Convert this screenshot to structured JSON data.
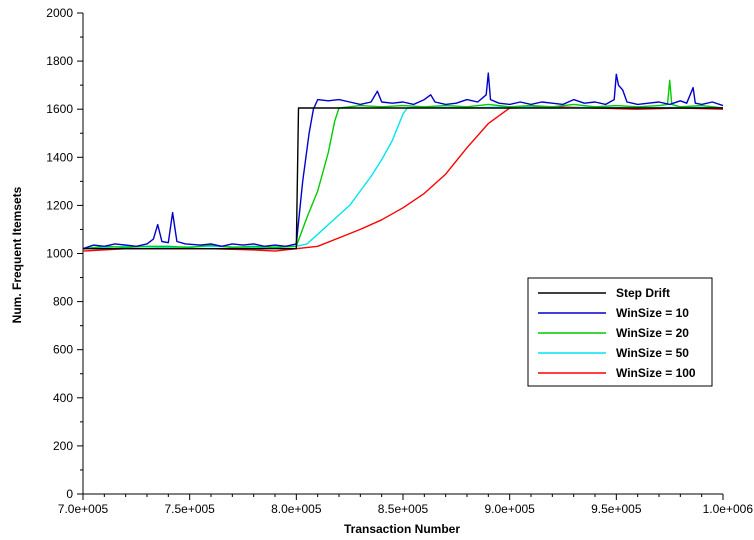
{
  "chart_data": {
    "type": "line",
    "title": "",
    "xlabel": "Transaction Number",
    "ylabel": "Num. Frequent Itemsets",
    "xlim": [
      700000,
      1000000
    ],
    "ylim": [
      0,
      2000
    ],
    "x_ticks": [
      700000,
      750000,
      800000,
      850000,
      900000,
      950000,
      1000000
    ],
    "x_tick_labels": [
      "7.0e+005",
      "7.5e+005",
      "8.0e+005",
      "8.5e+005",
      "9.0e+005",
      "9.5e+005",
      "1.0e+006"
    ],
    "y_ticks": [
      0,
      200,
      400,
      600,
      800,
      1000,
      1200,
      1400,
      1600,
      1800,
      2000
    ],
    "y_tick_labels": [
      "0",
      "200",
      "400",
      "600",
      "800",
      "1000",
      "1200",
      "1400",
      "1600",
      "1800",
      "2000"
    ],
    "grid": false,
    "legend_position": "lower-right",
    "series": [
      {
        "name": "Step Drift",
        "color": "#000000",
        "points": [
          [
            700000,
            1020
          ],
          [
            800000,
            1020
          ],
          [
            801000,
            1605
          ],
          [
            1000000,
            1605
          ]
        ]
      },
      {
        "name": "WinSize = 10",
        "color": "#0000cc",
        "points": [
          [
            700000,
            1020
          ],
          [
            705000,
            1035
          ],
          [
            710000,
            1030
          ],
          [
            715000,
            1040
          ],
          [
            720000,
            1035
          ],
          [
            725000,
            1030
          ],
          [
            730000,
            1040
          ],
          [
            733000,
            1060
          ],
          [
            735000,
            1120
          ],
          [
            737000,
            1050
          ],
          [
            740000,
            1045
          ],
          [
            742000,
            1170
          ],
          [
            744000,
            1050
          ],
          [
            748000,
            1040
          ],
          [
            755000,
            1035
          ],
          [
            760000,
            1040
          ],
          [
            765000,
            1030
          ],
          [
            770000,
            1040
          ],
          [
            775000,
            1035
          ],
          [
            780000,
            1040
          ],
          [
            785000,
            1030
          ],
          [
            790000,
            1035
          ],
          [
            795000,
            1030
          ],
          [
            800000,
            1040
          ],
          [
            803000,
            1300
          ],
          [
            806000,
            1500
          ],
          [
            808000,
            1600
          ],
          [
            810000,
            1640
          ],
          [
            815000,
            1635
          ],
          [
            820000,
            1640
          ],
          [
            825000,
            1630
          ],
          [
            830000,
            1620
          ],
          [
            835000,
            1630
          ],
          [
            838000,
            1675
          ],
          [
            840000,
            1630
          ],
          [
            845000,
            1625
          ],
          [
            850000,
            1630
          ],
          [
            855000,
            1620
          ],
          [
            860000,
            1640
          ],
          [
            863000,
            1660
          ],
          [
            865000,
            1630
          ],
          [
            870000,
            1620
          ],
          [
            875000,
            1625
          ],
          [
            880000,
            1640
          ],
          [
            885000,
            1630
          ],
          [
            889000,
            1660
          ],
          [
            890000,
            1750
          ],
          [
            891000,
            1640
          ],
          [
            895000,
            1625
          ],
          [
            900000,
            1620
          ],
          [
            905000,
            1630
          ],
          [
            910000,
            1620
          ],
          [
            915000,
            1630
          ],
          [
            920000,
            1625
          ],
          [
            925000,
            1620
          ],
          [
            930000,
            1640
          ],
          [
            935000,
            1625
          ],
          [
            940000,
            1630
          ],
          [
            945000,
            1620
          ],
          [
            949000,
            1640
          ],
          [
            950000,
            1745
          ],
          [
            951000,
            1700
          ],
          [
            953000,
            1680
          ],
          [
            955000,
            1630
          ],
          [
            960000,
            1620
          ],
          [
            965000,
            1625
          ],
          [
            970000,
            1630
          ],
          [
            975000,
            1620
          ],
          [
            980000,
            1635
          ],
          [
            983000,
            1625
          ],
          [
            986000,
            1690
          ],
          [
            987000,
            1625
          ],
          [
            990000,
            1620
          ],
          [
            995000,
            1630
          ],
          [
            1000000,
            1615
          ]
        ]
      },
      {
        "name": "WinSize = 20",
        "color": "#00cc00",
        "points": [
          [
            700000,
            1020
          ],
          [
            710000,
            1030
          ],
          [
            720000,
            1025
          ],
          [
            730000,
            1030
          ],
          [
            740000,
            1030
          ],
          [
            750000,
            1025
          ],
          [
            760000,
            1035
          ],
          [
            770000,
            1025
          ],
          [
            780000,
            1030
          ],
          [
            790000,
            1025
          ],
          [
            800000,
            1030
          ],
          [
            805000,
            1150
          ],
          [
            810000,
            1260
          ],
          [
            815000,
            1420
          ],
          [
            818000,
            1550
          ],
          [
            820000,
            1605
          ],
          [
            825000,
            1610
          ],
          [
            830000,
            1615
          ],
          [
            840000,
            1610
          ],
          [
            850000,
            1615
          ],
          [
            860000,
            1610
          ],
          [
            870000,
            1615
          ],
          [
            880000,
            1610
          ],
          [
            890000,
            1620
          ],
          [
            900000,
            1610
          ],
          [
            910000,
            1615
          ],
          [
            920000,
            1610
          ],
          [
            930000,
            1620
          ],
          [
            940000,
            1610
          ],
          [
            950000,
            1615
          ],
          [
            960000,
            1610
          ],
          [
            970000,
            1615
          ],
          [
            974000,
            1620
          ],
          [
            975000,
            1720
          ],
          [
            976000,
            1620
          ],
          [
            980000,
            1610
          ],
          [
            990000,
            1615
          ],
          [
            1000000,
            1605
          ]
        ]
      },
      {
        "name": "WinSize = 50",
        "color": "#00e5ee",
        "points": [
          [
            700000,
            1020
          ],
          [
            720000,
            1030
          ],
          [
            740000,
            1025
          ],
          [
            760000,
            1030
          ],
          [
            780000,
            1025
          ],
          [
            800000,
            1030
          ],
          [
            805000,
            1040
          ],
          [
            810000,
            1080
          ],
          [
            815000,
            1120
          ],
          [
            820000,
            1160
          ],
          [
            825000,
            1200
          ],
          [
            830000,
            1260
          ],
          [
            835000,
            1320
          ],
          [
            840000,
            1390
          ],
          [
            845000,
            1470
          ],
          [
            850000,
            1580
          ],
          [
            852000,
            1605
          ],
          [
            860000,
            1608
          ],
          [
            880000,
            1605
          ],
          [
            900000,
            1610
          ],
          [
            920000,
            1605
          ],
          [
            940000,
            1608
          ],
          [
            960000,
            1605
          ],
          [
            980000,
            1608
          ],
          [
            1000000,
            1605
          ]
        ]
      },
      {
        "name": "WinSize = 100",
        "color": "#ff0000",
        "points": [
          [
            700000,
            1010
          ],
          [
            720000,
            1020
          ],
          [
            740000,
            1020
          ],
          [
            760000,
            1020
          ],
          [
            780000,
            1015
          ],
          [
            790000,
            1010
          ],
          [
            800000,
            1020
          ],
          [
            810000,
            1030
          ],
          [
            820000,
            1065
          ],
          [
            830000,
            1100
          ],
          [
            840000,
            1140
          ],
          [
            850000,
            1190
          ],
          [
            860000,
            1250
          ],
          [
            870000,
            1330
          ],
          [
            880000,
            1440
          ],
          [
            890000,
            1540
          ],
          [
            900000,
            1605
          ],
          [
            920000,
            1610
          ],
          [
            940000,
            1605
          ],
          [
            960000,
            1600
          ],
          [
            980000,
            1605
          ],
          [
            1000000,
            1600
          ]
        ]
      }
    ]
  }
}
